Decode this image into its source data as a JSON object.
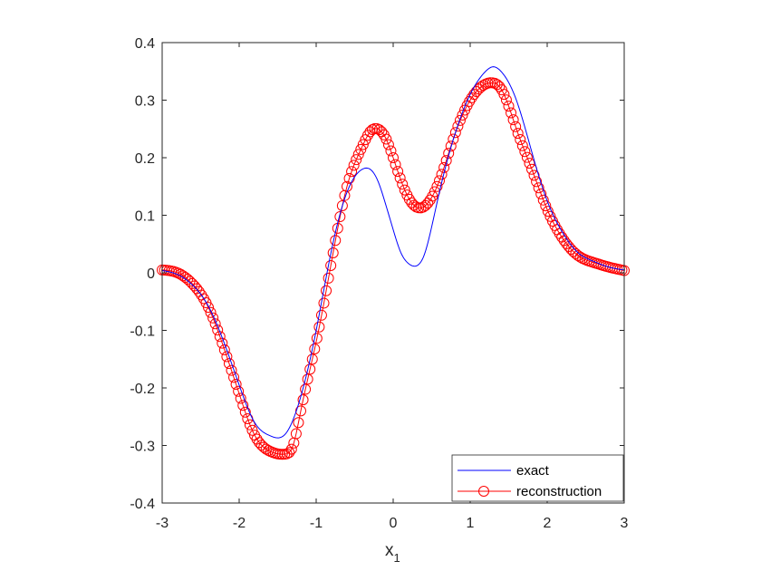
{
  "chart_data": {
    "type": "line",
    "xlabel": "x",
    "xlabel_sub": "1",
    "ylabel": "",
    "title": "",
    "xlim": [
      -3,
      3
    ],
    "ylim": [
      -0.4,
      0.4
    ],
    "x_ticks": [
      -3,
      -2,
      -1,
      0,
      1,
      2,
      3
    ],
    "x_tick_labels": [
      "-3",
      "-2",
      "-1",
      "0",
      "1",
      "2",
      "3"
    ],
    "y_ticks": [
      -0.4,
      -0.3,
      -0.2,
      -0.1,
      0,
      0.1,
      0.2,
      0.3,
      0.4
    ],
    "y_tick_labels": [
      "-0.4",
      "-0.3",
      "-0.2",
      "-0.1",
      "0",
      "0.1",
      "0.2",
      "0.3",
      "0.4"
    ],
    "grid": false,
    "legend_position": "bottom-right",
    "series": [
      {
        "name": "exact",
        "color": "#0000ff",
        "marker": "none",
        "x": [
          -3.0,
          -2.8,
          -2.6,
          -2.4,
          -2.2,
          -2.0,
          -1.8,
          -1.6,
          -1.4,
          -1.2,
          -1.0,
          -0.8,
          -0.6,
          -0.4,
          -0.3,
          -0.2,
          -0.1,
          0.0,
          0.1,
          0.2,
          0.3,
          0.4,
          0.5,
          0.6,
          0.8,
          1.0,
          1.2,
          1.3,
          1.4,
          1.6,
          1.8,
          2.0,
          2.2,
          2.4,
          2.6,
          2.8,
          3.0
        ],
        "y": [
          0.004,
          -0.003,
          -0.022,
          -0.058,
          -0.12,
          -0.195,
          -0.26,
          -0.283,
          -0.28,
          -0.215,
          -0.1,
          0.04,
          0.14,
          0.18,
          0.18,
          0.16,
          0.12,
          0.075,
          0.035,
          0.016,
          0.012,
          0.03,
          0.08,
          0.14,
          0.24,
          0.31,
          0.35,
          0.358,
          0.35,
          0.3,
          0.21,
          0.125,
          0.07,
          0.035,
          0.02,
          0.01,
          0.005
        ]
      },
      {
        "name": "reconstruction",
        "color": "#ff0000",
        "marker": "circle",
        "x": [
          -3.0,
          -2.8,
          -2.6,
          -2.4,
          -2.2,
          -2.0,
          -1.8,
          -1.6,
          -1.4,
          -1.3,
          -1.2,
          -1.0,
          -0.8,
          -0.6,
          -0.4,
          -0.3,
          -0.2,
          -0.1,
          0.0,
          0.2,
          0.4,
          0.6,
          0.8,
          1.0,
          1.2,
          1.3,
          1.4,
          1.6,
          1.8,
          2.0,
          2.2,
          2.4,
          2.6,
          2.8,
          3.0
        ],
        "y": [
          0.005,
          0.0,
          -0.02,
          -0.06,
          -0.13,
          -0.21,
          -0.282,
          -0.31,
          -0.315,
          -0.3,
          -0.24,
          -0.12,
          0.02,
          0.15,
          0.22,
          0.245,
          0.25,
          0.235,
          0.2,
          0.13,
          0.115,
          0.16,
          0.24,
          0.3,
          0.328,
          0.33,
          0.32,
          0.25,
          0.18,
          0.11,
          0.06,
          0.03,
          0.018,
          0.01,
          0.004
        ]
      }
    ]
  },
  "legend": {
    "items": [
      {
        "label": "exact",
        "color": "#0000ff",
        "marker": "none"
      },
      {
        "label": "reconstruction",
        "color": "#ff0000",
        "marker": "circle"
      }
    ]
  }
}
